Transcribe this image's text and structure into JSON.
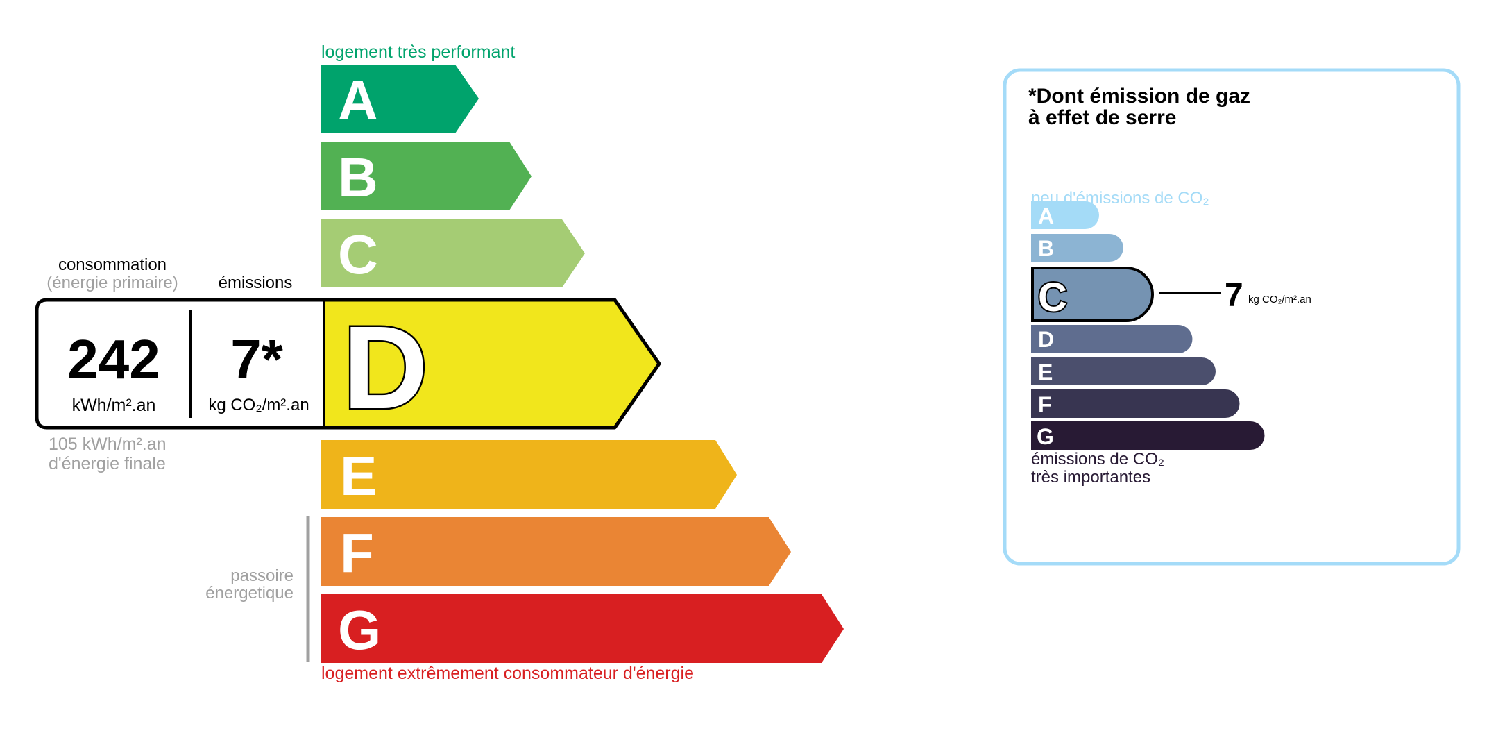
{
  "energy": {
    "top_label": "logement très performant",
    "bottom_label": "logement extrêmement consommateur d'énergie",
    "passoire_label_1": "passoire",
    "passoire_label_2": "énergetique",
    "classes": [
      "A",
      "B",
      "C",
      "D",
      "E",
      "F",
      "G"
    ],
    "current_class": "D",
    "colors": {
      "A": "#00a36c",
      "B": "#52b153",
      "C": "#a5cc74",
      "D": "#f1e61c",
      "E": "#efb41a",
      "F": "#ea8534",
      "G": "#d81f21"
    }
  },
  "readout": {
    "consumption_label": "consommation",
    "consumption_sublabel": "(énergie primaire)",
    "emissions_label": "émissions",
    "consumption_value": "242",
    "consumption_unit": "kWh/m².an",
    "emissions_value": "7*",
    "emissions_unit": "kg CO₂/m².an",
    "final_energy_value": "105 kWh/m².an",
    "final_energy_label": "d'énergie finale"
  },
  "ghg": {
    "title_1": "*Dont émission de gaz",
    "title_2": "à effet de serre",
    "top_label": "peu d'émissions de CO₂",
    "bottom_label_1": "émissions de CO₂",
    "bottom_label_2": "très importantes",
    "classes": [
      "A",
      "B",
      "C",
      "D",
      "E",
      "F",
      "G"
    ],
    "current_class": "C",
    "value": "7",
    "unit": "kg CO₂/m².an",
    "colors": {
      "A": "#a4dbf7",
      "B": "#8cb4d3",
      "C": "#7593b2",
      "D": "#5f6d8f",
      "E": "#4b4f6d",
      "F": "#383551",
      "G": "#281a34"
    },
    "border_color": "#a4dbf8"
  }
}
